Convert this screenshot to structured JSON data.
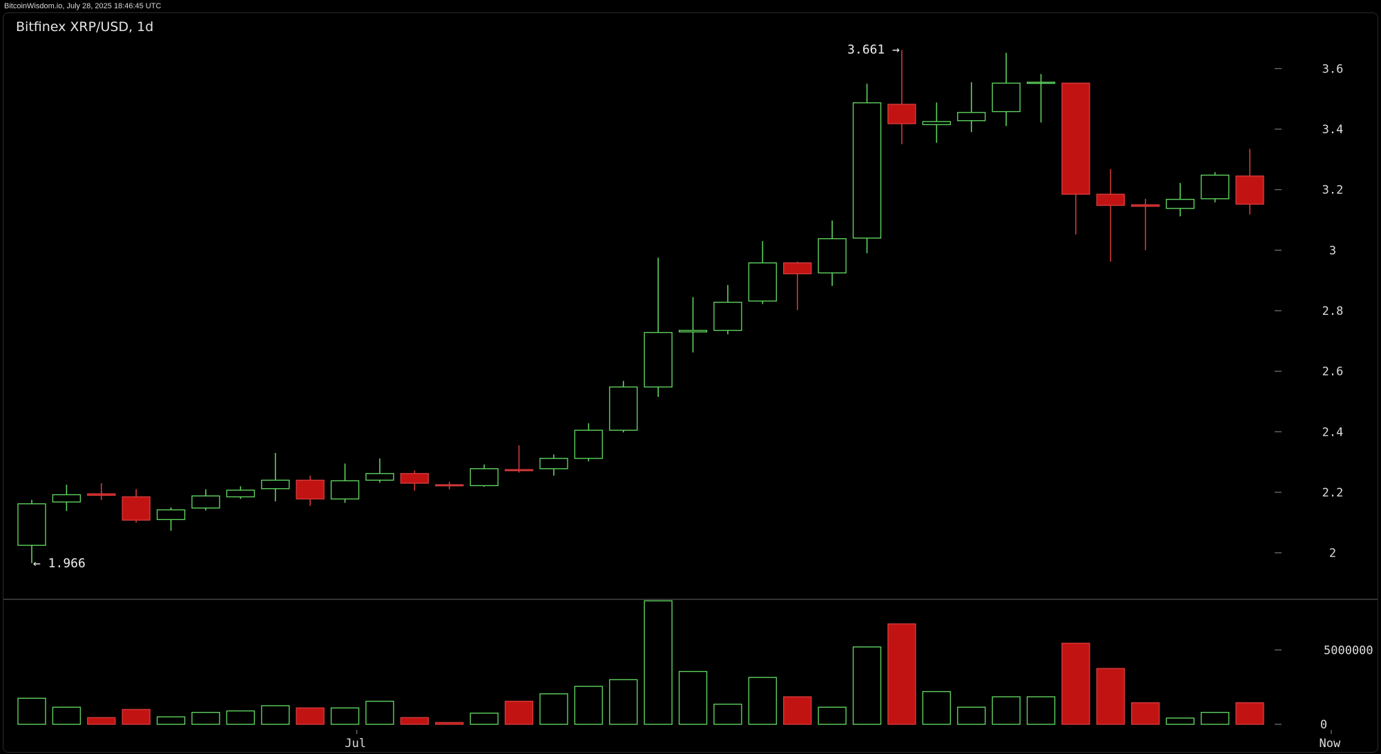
{
  "header": {
    "watermark": "BitcoinWisdom.io, July 28, 2025 18:46:45 UTC"
  },
  "colors": {
    "up": "#5fd35f",
    "down": "#c21313",
    "down_stroke": "#d43a3a",
    "tick": "#777777",
    "text": "#dcdcdc"
  },
  "chart_data": {
    "type": "candlestick",
    "title": "Bitfinex XRP/USD, 1d",
    "price_axis": {
      "ylim": [
        1.86,
        3.74
      ],
      "ticks": [
        2,
        2.2,
        2.4,
        2.6,
        2.8,
        3,
        3.2,
        3.4,
        3.6
      ],
      "tick_labels": [
        "2",
        "2.2",
        "2.4",
        "2.6",
        "2.8",
        "3",
        "3.2",
        "3.4",
        "3.6"
      ]
    },
    "volume_axis": {
      "ylim": [
        0,
        8400000
      ],
      "ticks": [
        0,
        5000000
      ],
      "tick_labels": [
        "0",
        "5000000"
      ]
    },
    "x_labels": [
      {
        "index": 9.3,
        "label": "Jul"
      },
      {
        "index": 37.3,
        "label": "Now"
      }
    ],
    "annotations": [
      {
        "text": "3.661 →",
        "index": 25,
        "value": 3.661,
        "anchor": "end"
      },
      {
        "text": "← 1.966",
        "index": 0,
        "value": 1.966,
        "anchor": "start"
      }
    ],
    "candles": [
      {
        "o": 2.025,
        "h": 2.175,
        "l": 1.966,
        "c": 2.162,
        "v": 1750000
      },
      {
        "o": 2.168,
        "h": 2.225,
        "l": 2.138,
        "c": 2.192,
        "v": 1150000
      },
      {
        "o": 2.195,
        "h": 2.23,
        "l": 2.175,
        "c": 2.19,
        "v": 450000
      },
      {
        "o": 2.185,
        "h": 2.21,
        "l": 2.1,
        "c": 2.108,
        "v": 1000000
      },
      {
        "o": 2.11,
        "h": 2.15,
        "l": 2.073,
        "c": 2.142,
        "v": 500000
      },
      {
        "o": 2.148,
        "h": 2.21,
        "l": 2.14,
        "c": 2.188,
        "v": 800000
      },
      {
        "o": 2.185,
        "h": 2.22,
        "l": 2.178,
        "c": 2.207,
        "v": 900000
      },
      {
        "o": 2.212,
        "h": 2.33,
        "l": 2.17,
        "c": 2.24,
        "v": 1250000
      },
      {
        "o": 2.24,
        "h": 2.255,
        "l": 2.155,
        "c": 2.178,
        "v": 1100000
      },
      {
        "o": 2.178,
        "h": 2.295,
        "l": 2.165,
        "c": 2.238,
        "v": 1100000
      },
      {
        "o": 2.24,
        "h": 2.312,
        "l": 2.232,
        "c": 2.262,
        "v": 1550000
      },
      {
        "o": 2.262,
        "h": 2.272,
        "l": 2.205,
        "c": 2.23,
        "v": 450000
      },
      {
        "o": 2.225,
        "h": 2.235,
        "l": 2.21,
        "c": 2.223,
        "v": 120000
      },
      {
        "o": 2.222,
        "h": 2.292,
        "l": 2.218,
        "c": 2.278,
        "v": 750000
      },
      {
        "o": 2.275,
        "h": 2.355,
        "l": 2.265,
        "c": 2.272,
        "v": 1550000
      },
      {
        "o": 2.278,
        "h": 2.325,
        "l": 2.255,
        "c": 2.312,
        "v": 2050000
      },
      {
        "o": 2.312,
        "h": 2.428,
        "l": 2.302,
        "c": 2.405,
        "v": 2550000
      },
      {
        "o": 2.405,
        "h": 2.568,
        "l": 2.398,
        "c": 2.548,
        "v": 3000000
      },
      {
        "o": 2.548,
        "h": 2.975,
        "l": 2.515,
        "c": 2.728,
        "v": 8300000
      },
      {
        "o": 2.73,
        "h": 2.845,
        "l": 2.662,
        "c": 2.735,
        "v": 3550000
      },
      {
        "o": 2.735,
        "h": 2.885,
        "l": 2.722,
        "c": 2.828,
        "v": 1350000
      },
      {
        "o": 2.832,
        "h": 3.03,
        "l": 2.822,
        "c": 2.958,
        "v": 3150000
      },
      {
        "o": 2.958,
        "h": 2.962,
        "l": 2.802,
        "c": 2.922,
        "v": 1850000
      },
      {
        "o": 2.925,
        "h": 3.098,
        "l": 2.882,
        "c": 3.038,
        "v": 1150000
      },
      {
        "o": 3.04,
        "h": 3.55,
        "l": 2.99,
        "c": 3.487,
        "v": 5200000
      },
      {
        "o": 3.482,
        "h": 3.661,
        "l": 3.35,
        "c": 3.418,
        "v": 6750000
      },
      {
        "o": 3.415,
        "h": 3.488,
        "l": 3.355,
        "c": 3.425,
        "v": 2200000
      },
      {
        "o": 3.428,
        "h": 3.555,
        "l": 3.39,
        "c": 3.455,
        "v": 1150000
      },
      {
        "o": 3.458,
        "h": 3.652,
        "l": 3.41,
        "c": 3.552,
        "v": 1850000
      },
      {
        "o": 3.552,
        "h": 3.582,
        "l": 3.422,
        "c": 3.555,
        "v": 1850000
      },
      {
        "o": 3.552,
        "h": 3.552,
        "l": 3.052,
        "c": 3.185,
        "v": 5450000
      },
      {
        "o": 3.185,
        "h": 3.268,
        "l": 2.962,
        "c": 3.148,
        "v": 3750000
      },
      {
        "o": 3.15,
        "h": 3.17,
        "l": 3.0,
        "c": 3.145,
        "v": 1450000
      },
      {
        "o": 3.138,
        "h": 3.222,
        "l": 3.112,
        "c": 3.168,
        "v": 420000
      },
      {
        "o": 3.17,
        "h": 3.258,
        "l": 3.158,
        "c": 3.248,
        "v": 800000
      },
      {
        "o": 3.245,
        "h": 3.335,
        "l": 3.118,
        "c": 3.152,
        "v": 1450000
      }
    ]
  }
}
